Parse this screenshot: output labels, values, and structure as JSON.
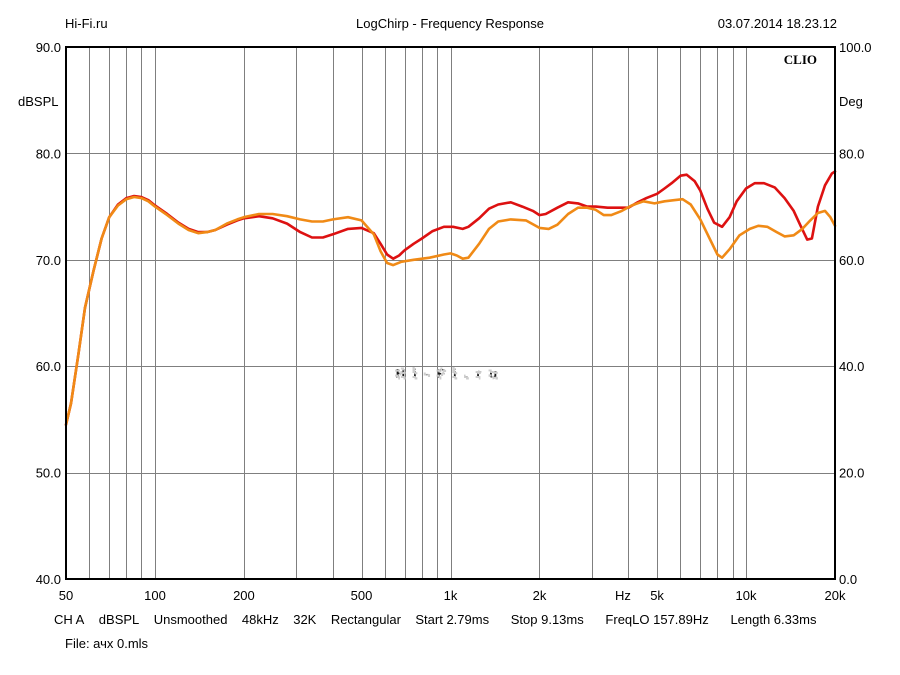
{
  "header": {
    "left": "Hi-Fi.ru",
    "title": "LogChirp - Frequency Response",
    "timestamp": "03.07.2014 18.23.12"
  },
  "brand": "CLIO",
  "watermark": "Hi-Fi.ru",
  "footer": {
    "settings": [
      "CH A",
      "dBSPL",
      "Unsmoothed",
      "48kHz",
      "32K",
      "Rectangular",
      "Start 2.79ms",
      "Stop 9.13ms",
      "FreqLO 157.89Hz",
      "Length 6.33ms"
    ],
    "file": "File: ачх 0.mls"
  },
  "colors": {
    "series_red": "#dd1111",
    "series_orange": "#f08a16",
    "grid": "#7f7f7f",
    "watermark": "#c8c8c8"
  },
  "chart_data": {
    "type": "line",
    "x_scale": "log",
    "xlim": [
      50,
      20000
    ],
    "ylim": [
      40,
      90
    ],
    "y2lim": [
      0,
      100
    ],
    "ylabel": "dBSPL",
    "y2label": "Deg",
    "x_unit_label": "Hz",
    "grid": true,
    "x_ticks": [
      {
        "value": 50,
        "label": "50"
      },
      {
        "value": 100,
        "label": "100"
      },
      {
        "value": 200,
        "label": "200"
      },
      {
        "value": 500,
        "label": "500"
      },
      {
        "value": 1000,
        "label": "1k"
      },
      {
        "value": 2000,
        "label": "2k"
      },
      {
        "value": 5000,
        "label": "5k"
      },
      {
        "value": 10000,
        "label": "10k"
      },
      {
        "value": 20000,
        "label": "20k"
      }
    ],
    "x_minor_grid": [
      60,
      70,
      80,
      90,
      300,
      400,
      600,
      700,
      800,
      900,
      3000,
      4000,
      6000,
      7000,
      8000,
      9000
    ],
    "y_ticks": [
      {
        "value": 40,
        "label": "40.0"
      },
      {
        "value": 50,
        "label": "50.0"
      },
      {
        "value": 60,
        "label": "60.0"
      },
      {
        "value": 70,
        "label": "70.0"
      },
      {
        "value": 80,
        "label": "80.0"
      },
      {
        "value": 90,
        "label": "90.0"
      }
    ],
    "y2_ticks": [
      {
        "value": 0,
        "label": "0.0"
      },
      {
        "value": 20,
        "label": "20.0"
      },
      {
        "value": 40,
        "label": "40.0"
      },
      {
        "value": 60,
        "label": "60.0"
      },
      {
        "value": 80,
        "label": "80.0"
      },
      {
        "value": 100,
        "label": "100.0"
      }
    ],
    "series": [
      {
        "color": "#dd1111",
        "points": [
          [
            50,
            54.5
          ],
          [
            52,
            56.5
          ],
          [
            55,
            61
          ],
          [
            58,
            65.5
          ],
          [
            62,
            69
          ],
          [
            66,
            72
          ],
          [
            70,
            74
          ],
          [
            75,
            75.2
          ],
          [
            80,
            75.8
          ],
          [
            85,
            76
          ],
          [
            90,
            75.9
          ],
          [
            95,
            75.6
          ],
          [
            100,
            75.1
          ],
          [
            110,
            74.3
          ],
          [
            120,
            73.5
          ],
          [
            130,
            72.9
          ],
          [
            140,
            72.6
          ],
          [
            150,
            72.6
          ],
          [
            160,
            72.8
          ],
          [
            175,
            73.3
          ],
          [
            190,
            73.7
          ],
          [
            200,
            73.9
          ],
          [
            225,
            74.1
          ],
          [
            250,
            73.9
          ],
          [
            280,
            73.4
          ],
          [
            310,
            72.6
          ],
          [
            340,
            72.1
          ],
          [
            370,
            72.1
          ],
          [
            400,
            72.4
          ],
          [
            450,
            72.9
          ],
          [
            500,
            73
          ],
          [
            550,
            72.5
          ],
          [
            580,
            71.5
          ],
          [
            610,
            70.5
          ],
          [
            640,
            70.1
          ],
          [
            670,
            70.4
          ],
          [
            700,
            70.9
          ],
          [
            750,
            71.5
          ],
          [
            800,
            72
          ],
          [
            870,
            72.7
          ],
          [
            950,
            73.1
          ],
          [
            1020,
            73.1
          ],
          [
            1100,
            72.9
          ],
          [
            1150,
            73.1
          ],
          [
            1250,
            73.9
          ],
          [
            1350,
            74.8
          ],
          [
            1450,
            75.2
          ],
          [
            1600,
            75.4
          ],
          [
            1750,
            75
          ],
          [
            1900,
            74.6
          ],
          [
            2000,
            74.2
          ],
          [
            2100,
            74.3
          ],
          [
            2300,
            74.9
          ],
          [
            2500,
            75.4
          ],
          [
            2700,
            75.3
          ],
          [
            2900,
            75
          ],
          [
            3100,
            75
          ],
          [
            3400,
            74.9
          ],
          [
            3700,
            74.9
          ],
          [
            4000,
            74.9
          ],
          [
            4300,
            75.4
          ],
          [
            4600,
            75.8
          ],
          [
            5000,
            76.2
          ],
          [
            5300,
            76.7
          ],
          [
            5600,
            77.2
          ],
          [
            6000,
            77.9
          ],
          [
            6300,
            78
          ],
          [
            6700,
            77.4
          ],
          [
            7000,
            76.5
          ],
          [
            7400,
            74.8
          ],
          [
            7800,
            73.5
          ],
          [
            8300,
            73.1
          ],
          [
            8800,
            74
          ],
          [
            9300,
            75.5
          ],
          [
            10000,
            76.7
          ],
          [
            10700,
            77.2
          ],
          [
            11500,
            77.2
          ],
          [
            12500,
            76.8
          ],
          [
            13500,
            75.8
          ],
          [
            14500,
            74.6
          ],
          [
            15300,
            73.2
          ],
          [
            16100,
            71.9
          ],
          [
            16700,
            72
          ],
          [
            17500,
            75
          ],
          [
            18500,
            77
          ],
          [
            19500,
            78.1
          ],
          [
            20000,
            78.3
          ]
        ]
      },
      {
        "color": "#f08a16",
        "points": [
          [
            50,
            54.5
          ],
          [
            52,
            56.5
          ],
          [
            55,
            61
          ],
          [
            58,
            65.5
          ],
          [
            62,
            69
          ],
          [
            66,
            72
          ],
          [
            70,
            74
          ],
          [
            75,
            75.1
          ],
          [
            80,
            75.7
          ],
          [
            85,
            75.9
          ],
          [
            90,
            75.8
          ],
          [
            95,
            75.5
          ],
          [
            100,
            75
          ],
          [
            110,
            74.2
          ],
          [
            120,
            73.4
          ],
          [
            130,
            72.8
          ],
          [
            140,
            72.5
          ],
          [
            150,
            72.6
          ],
          [
            160,
            72.8
          ],
          [
            175,
            73.4
          ],
          [
            190,
            73.8
          ],
          [
            200,
            74
          ],
          [
            225,
            74.3
          ],
          [
            250,
            74.3
          ],
          [
            280,
            74.1
          ],
          [
            310,
            73.8
          ],
          [
            340,
            73.6
          ],
          [
            370,
            73.6
          ],
          [
            400,
            73.8
          ],
          [
            450,
            74
          ],
          [
            500,
            73.7
          ],
          [
            550,
            72.4
          ],
          [
            580,
            70.8
          ],
          [
            610,
            69.7
          ],
          [
            640,
            69.5
          ],
          [
            680,
            69.8
          ],
          [
            750,
            70
          ],
          [
            850,
            70.2
          ],
          [
            950,
            70.5
          ],
          [
            1000,
            70.6
          ],
          [
            1050,
            70.4
          ],
          [
            1100,
            70.1
          ],
          [
            1150,
            70.2
          ],
          [
            1250,
            71.5
          ],
          [
            1350,
            72.9
          ],
          [
            1450,
            73.6
          ],
          [
            1600,
            73.8
          ],
          [
            1800,
            73.7
          ],
          [
            2000,
            73
          ],
          [
            2150,
            72.9
          ],
          [
            2300,
            73.3
          ],
          [
            2500,
            74.3
          ],
          [
            2700,
            74.9
          ],
          [
            2900,
            74.9
          ],
          [
            3100,
            74.7
          ],
          [
            3300,
            74.2
          ],
          [
            3500,
            74.2
          ],
          [
            3800,
            74.6
          ],
          [
            4100,
            75.1
          ],
          [
            4500,
            75.5
          ],
          [
            4900,
            75.3
          ],
          [
            5300,
            75.5
          ],
          [
            5700,
            75.6
          ],
          [
            6100,
            75.7
          ],
          [
            6500,
            75.2
          ],
          [
            7000,
            73.8
          ],
          [
            7500,
            72.1
          ],
          [
            8000,
            70.5
          ],
          [
            8300,
            70.2
          ],
          [
            8800,
            71
          ],
          [
            9500,
            72.3
          ],
          [
            10300,
            72.9
          ],
          [
            11000,
            73.2
          ],
          [
            11800,
            73.1
          ],
          [
            12700,
            72.6
          ],
          [
            13500,
            72.2
          ],
          [
            14500,
            72.3
          ],
          [
            15500,
            72.9
          ],
          [
            16500,
            73.7
          ],
          [
            17500,
            74.4
          ],
          [
            18500,
            74.6
          ],
          [
            19300,
            74
          ],
          [
            20000,
            73.2
          ]
        ]
      }
    ]
  }
}
